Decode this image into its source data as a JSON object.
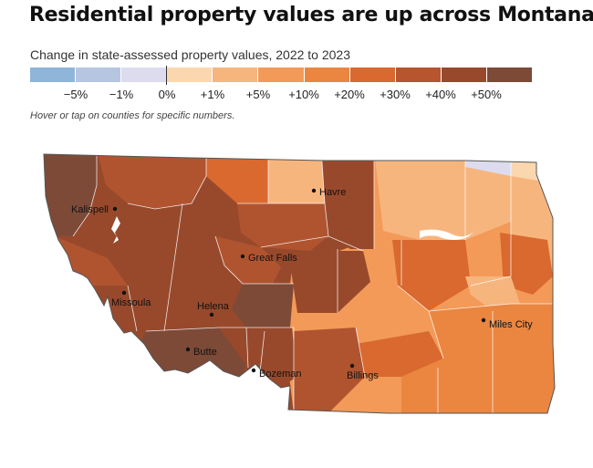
{
  "header": {
    "title": "Residential property values are up across Montana",
    "subtitle": "Change in state-assessed property values, 2022 to 2023",
    "hint": "Hover or tap on counties for specific numbers."
  },
  "legend": {
    "swatches": [
      {
        "color": "#8fb6d9"
      },
      {
        "color": "#b6c6e0"
      },
      {
        "color": "#dcdcee"
      },
      {
        "color": "#fbd7b0"
      },
      {
        "color": "#f7b57e"
      },
      {
        "color": "#f39a58"
      },
      {
        "color": "#ea8640"
      },
      {
        "color": "#d9692e"
      },
      {
        "color": "#b6552e"
      },
      {
        "color": "#98492c"
      },
      {
        "color": "#7d4a38"
      }
    ],
    "ticks": [
      "−5%",
      "−1%",
      "0%",
      "+1%",
      "+5%",
      "+10%",
      "+20%",
      "+30%",
      "+40%",
      "+50%"
    ]
  },
  "map": {
    "colors": {
      "very_dark": "#7d4a38",
      "dark": "#98492c",
      "brown": "#b05430",
      "rust": "#d9692e",
      "orange": "#ea8640",
      "mid_orange": "#f39a58",
      "light_orange": "#f7b57e",
      "pale": "#fbd7b0",
      "lavender": "#dcdcee"
    },
    "cities": [
      {
        "name": "Kalispell"
      },
      {
        "name": "Havre"
      },
      {
        "name": "Great Falls"
      },
      {
        "name": "Missoula"
      },
      {
        "name": "Helena"
      },
      {
        "name": "Butte"
      },
      {
        "name": "Bozeman"
      },
      {
        "name": "Billings"
      },
      {
        "name": "Miles City"
      }
    ]
  }
}
